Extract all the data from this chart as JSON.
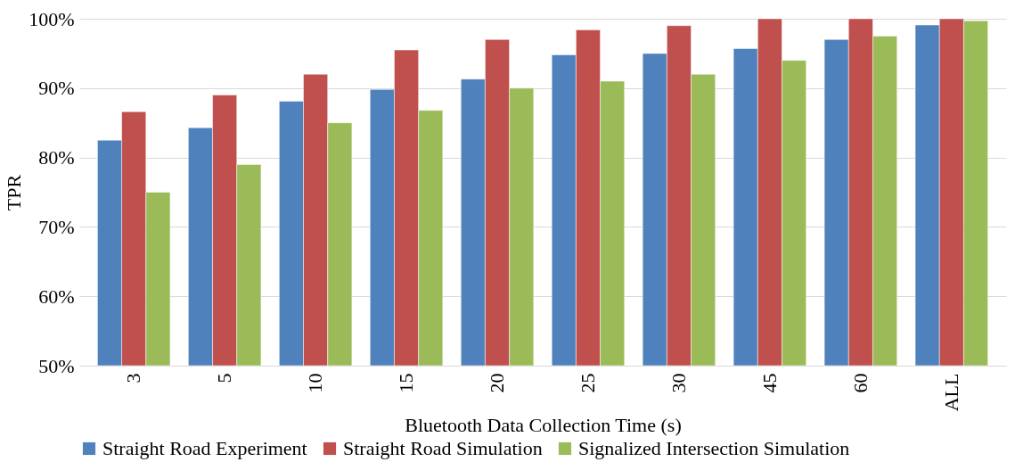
{
  "chart_data": {
    "type": "bar",
    "xlabel": "Bluetooth Data Collection Time (s)",
    "ylabel": "TPR",
    "categories": [
      "3",
      "5",
      "10",
      "15",
      "20",
      "25",
      "30",
      "45",
      "60",
      "ALL"
    ],
    "series": [
      {
        "name": "Straight Road Experiment",
        "color": "#4f81bd",
        "values": [
          82.5,
          84.3,
          88.1,
          89.8,
          91.3,
          94.8,
          95.0,
          95.7,
          97.0,
          99.1
        ]
      },
      {
        "name": "Straight Road Simulation",
        "color": "#c0504d",
        "values": [
          86.6,
          89.0,
          92.0,
          95.5,
          97.0,
          98.4,
          99.0,
          100,
          100,
          100
        ]
      },
      {
        "name": "Signalized Intersection Simulation",
        "color": "#9bbb59",
        "values": [
          75.0,
          79.0,
          85.0,
          86.8,
          90.0,
          91.0,
          92.0,
          94.0,
          97.5,
          99.7
        ]
      }
    ],
    "ylim": [
      50,
      100
    ],
    "yticks": [
      {
        "value": 50,
        "label": "50%"
      },
      {
        "value": 60,
        "label": "60%"
      },
      {
        "value": 70,
        "label": "70%"
      },
      {
        "value": 80,
        "label": "80%"
      },
      {
        "value": 90,
        "label": "90%"
      },
      {
        "value": 100,
        "label": "100%"
      }
    ],
    "grid": "y",
    "legend": "bottom"
  }
}
